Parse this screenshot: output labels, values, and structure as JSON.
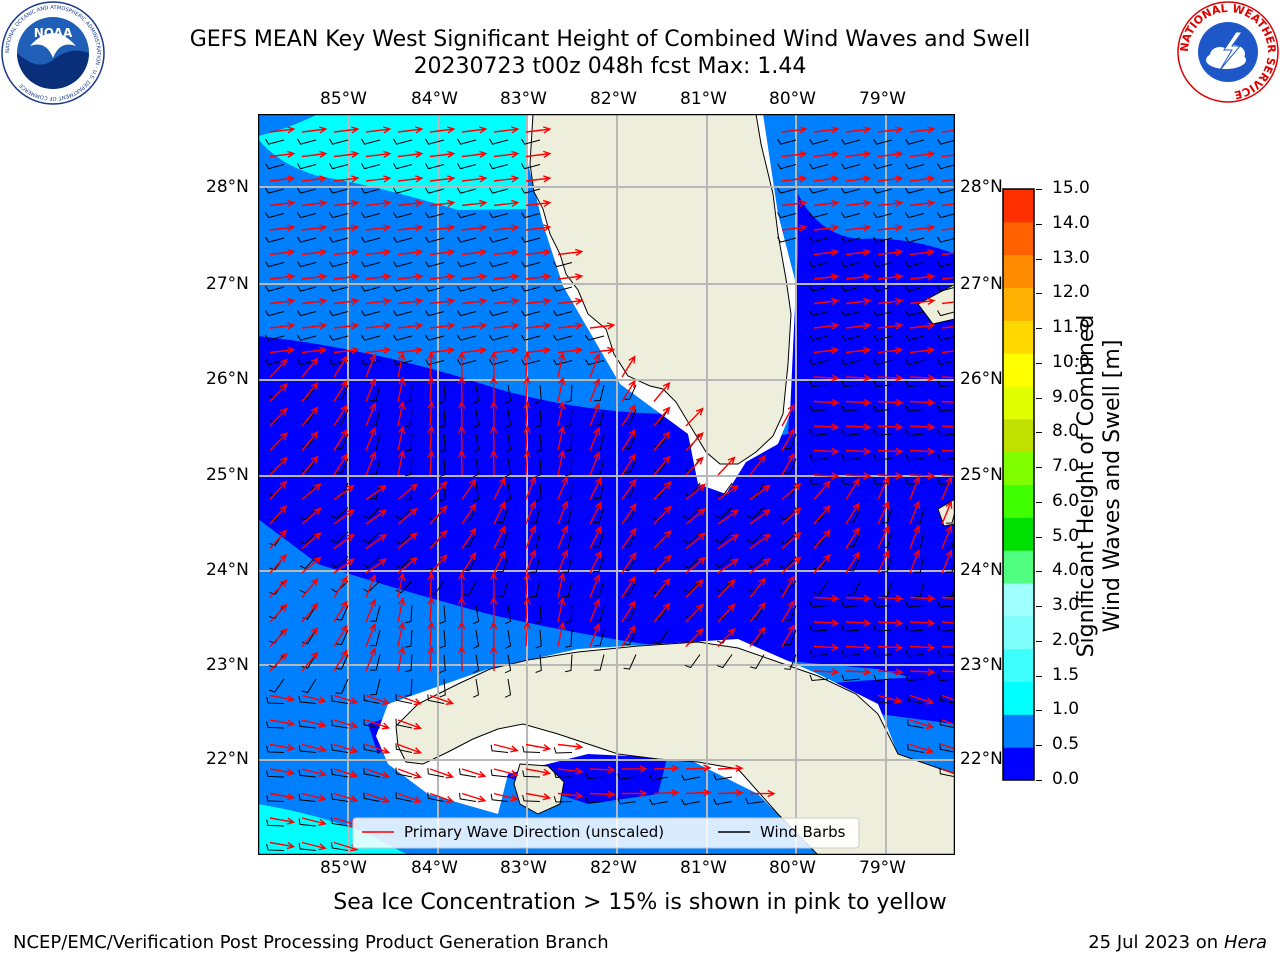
{
  "title_line1": "GEFS MEAN Key West Significant Height of Combined Wind Waves and Swell",
  "title_line2": "20230723 t00z 048h fcst   Max: 1.44",
  "lon_labels": [
    "85°W",
    "84°W",
    "83°W",
    "82°W",
    "81°W",
    "80°W",
    "79°W"
  ],
  "lat_labels": [
    "28°N",
    "27°N",
    "26°N",
    "25°N",
    "24°N",
    "23°N",
    "22°N"
  ],
  "legend": {
    "wave_direction": "Primary Wave Direction (unscaled)",
    "wind_barbs": "Wind Barbs"
  },
  "colorbar": {
    "label_line1": "Significant Height of Combined",
    "label_line2": "Wind Waves and Swell [m]",
    "ticks": [
      "15.0",
      "14.0",
      "13.0",
      "12.0",
      "11.0",
      "10.0",
      "9.0",
      "8.0",
      "7.0",
      "6.0",
      "5.0",
      "4.0",
      "3.0",
      "2.0",
      "1.5",
      "1.0",
      "0.5",
      "0.0"
    ],
    "colors": [
      "#0000ff",
      "#0080ff",
      "#00ffff",
      "#40ffff",
      "#80ffff",
      "#a0ffff",
      "#50ff80",
      "#00e000",
      "#40ff00",
      "#80ff00",
      "#c0e000",
      "#e0ff00",
      "#ffff00",
      "#ffd800",
      "#ffb000",
      "#ff8c00",
      "#ff6000",
      "#ff3000",
      "#ff0000"
    ]
  },
  "colors": {
    "sea_dark": "#0000ff",
    "sea_mid": "#0080ff",
    "sea_light": "#00ffff",
    "land": "#eeeedd",
    "arrow": "#ff0000"
  },
  "note": "Sea Ice Concentration > 15% is shown in pink to yellow",
  "footer_left": "NCEP/EMC/Verification Post Processing Product Generation Branch",
  "footer_date": "25 Jul 2023 on ",
  "footer_machine": "Hera",
  "logo_left": {
    "emblem": "NOAA",
    "ring_text": "NATIONAL OCEANIC AND ATMOSPHERIC ADMINISTRATION · U.S. DEPARTMENT OF COMMERCE"
  },
  "logo_right": {
    "ring_text": "NATIONAL WEATHER SERVICE"
  }
}
